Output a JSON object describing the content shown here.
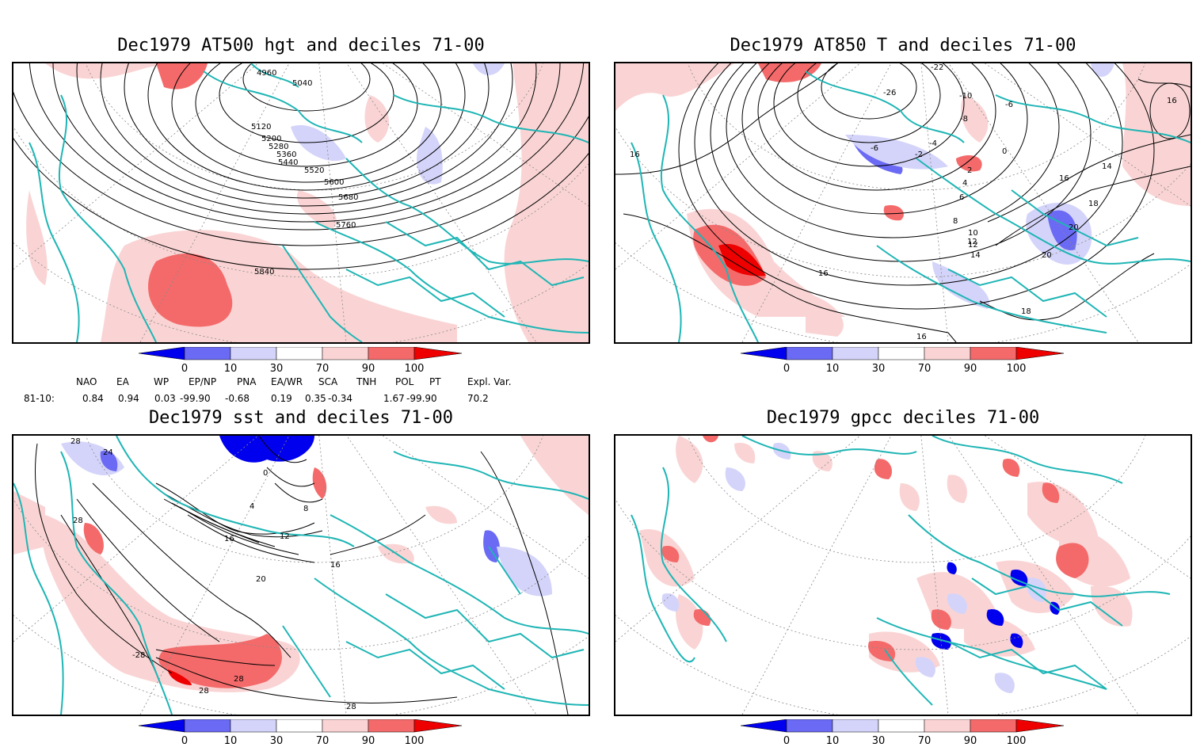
{
  "colors": {
    "coast": "#1fb5b5",
    "contour": "#000000",
    "deep_red": "#ee0000",
    "mid_red": "#f46a6a",
    "light_red": "#fad4d4",
    "deep_blue": "#0000ee",
    "mid_blue": "#6a6af4",
    "light_blue": "#d4d4fa"
  },
  "colorbar": {
    "labels": [
      "0",
      "10",
      "30",
      "70",
      "90",
      "100"
    ],
    "colors": [
      "#0000ee",
      "#6a6af4",
      "#d4d4fa",
      "#ffffff",
      "#fad4d4",
      "#f46a6a",
      "#ee0000"
    ]
  },
  "panels": [
    {
      "title": "Dec1979 AT500 hgt and deciles 71-00",
      "contour_labels": [
        "4960",
        "5040",
        "5120",
        "5200",
        "5280",
        "5360",
        "5440",
        "5520",
        "5600",
        "5680",
        "5760",
        "5840"
      ]
    },
    {
      "title": "Dec1979 AT850 T and deciles 71-00",
      "contour_labels": [
        "-26",
        "-22",
        "-10",
        "-6",
        "-8",
        "-4",
        "-2",
        "0",
        "-6",
        "2",
        "4",
        "6",
        "8",
        "10",
        "12",
        "14",
        "16",
        "16",
        "16",
        "16",
        "16",
        "18",
        "18",
        "20",
        "20",
        "14",
        "12"
      ]
    },
    {
      "title": "Dec1979 sst and deciles 71-00",
      "contour_labels": [
        "24",
        "28",
        "28",
        "-28",
        "0",
        "4",
        "8",
        "12",
        "16",
        "16",
        "20",
        "28",
        "28",
        "28"
      ]
    },
    {
      "title": "Dec1979 gpcc deciles 71-00",
      "contour_labels": []
    }
  ],
  "indices": {
    "row_label": "81-10:",
    "headers": [
      "NAO",
      "EA",
      "WP",
      "EP/NP",
      "PNA",
      "EA/WR",
      "SCA",
      "TNH",
      "POL",
      "PT",
      "Expl. Var."
    ],
    "values": [
      "0.84",
      "0.94",
      "0.03",
      "-99.90",
      "-0.68",
      "0.19",
      "0.35",
      "-0.34",
      "1.67",
      "-99.90",
      "70.2"
    ]
  }
}
